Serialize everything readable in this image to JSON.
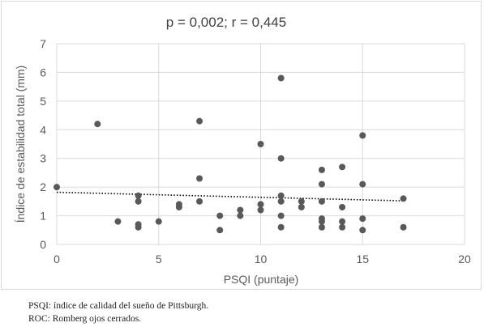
{
  "chart_data": {
    "type": "scatter",
    "title": "p = 0,002; r = 0,445",
    "xlabel": "PSQI (puntaje)",
    "ylabel": "Índice de estabilidad total (mm)",
    "xlim": [
      0,
      20
    ],
    "ylim": [
      0,
      7
    ],
    "x_ticks": [
      "0",
      "5",
      "10",
      "15",
      "20"
    ],
    "y_ticks": [
      "0",
      "1",
      "2",
      "3",
      "4",
      "5",
      "6",
      "7"
    ],
    "grid": true,
    "legend": "none",
    "point_color": "#595959",
    "trendline": {
      "style": "dotted",
      "color": "#000000",
      "x": [
        0,
        17
      ],
      "y": [
        1.82,
        1.52
      ]
    },
    "points": [
      [
        0,
        2.0
      ],
      [
        2,
        4.2
      ],
      [
        3,
        0.8
      ],
      [
        4,
        1.7
      ],
      [
        4,
        1.5
      ],
      [
        4,
        0.7
      ],
      [
        4,
        0.6
      ],
      [
        5,
        0.8
      ],
      [
        6,
        1.4
      ],
      [
        6,
        1.3
      ],
      [
        7,
        4.3
      ],
      [
        7,
        2.3
      ],
      [
        7,
        1.5
      ],
      [
        8,
        1.0
      ],
      [
        8,
        0.5
      ],
      [
        9,
        1.2
      ],
      [
        9,
        1.0
      ],
      [
        10,
        3.5
      ],
      [
        10,
        1.4
      ],
      [
        10,
        1.2
      ],
      [
        11,
        5.8
      ],
      [
        11,
        3.0
      ],
      [
        11,
        1.7
      ],
      [
        11,
        1.5
      ],
      [
        11,
        1.0
      ],
      [
        11,
        0.6
      ],
      [
        12,
        1.5
      ],
      [
        12,
        1.3
      ],
      [
        13,
        2.6
      ],
      [
        13,
        2.1
      ],
      [
        13,
        1.5
      ],
      [
        13,
        0.9
      ],
      [
        13,
        0.8
      ],
      [
        13,
        0.6
      ],
      [
        14,
        2.7
      ],
      [
        14,
        1.3
      ],
      [
        14,
        0.8
      ],
      [
        14,
        0.6
      ],
      [
        15,
        3.8
      ],
      [
        15,
        2.1
      ],
      [
        15,
        0.9
      ],
      [
        15,
        0.5
      ],
      [
        17,
        1.6
      ],
      [
        17,
        0.6
      ]
    ]
  },
  "notes": [
    "PSQI: índice de calidad del sueño de Pittsburgh.",
    "ROC: Romberg ojos cerrados."
  ]
}
